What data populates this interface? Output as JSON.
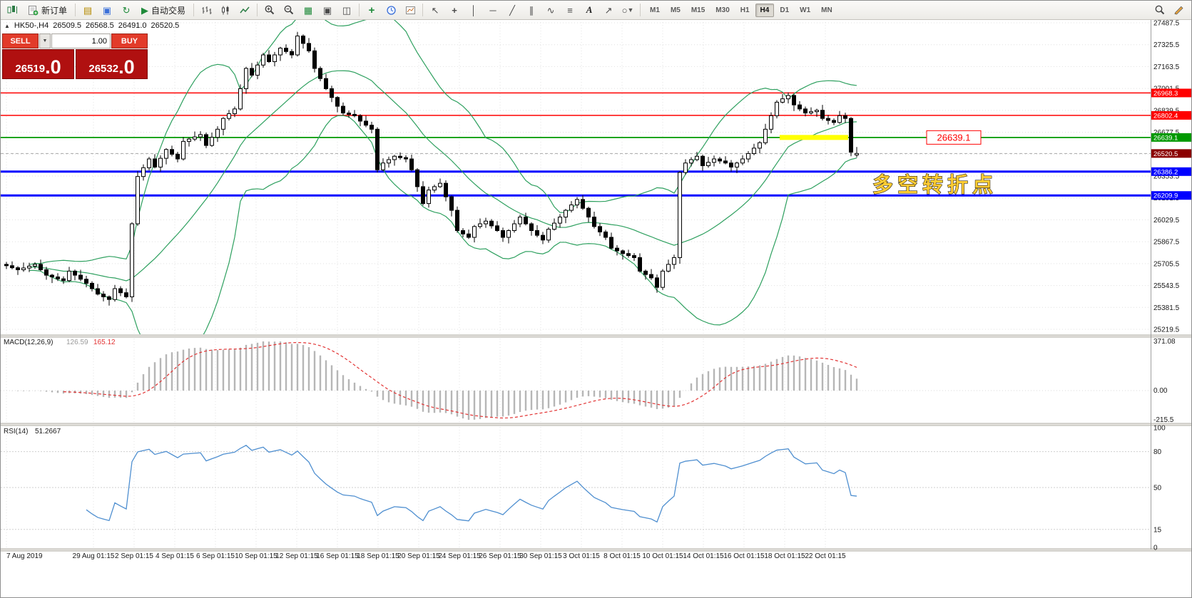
{
  "toolbar": {
    "new_order_label": "新订单",
    "autotrading_label": "自动交易",
    "timeframes": [
      "M1",
      "M5",
      "M15",
      "M30",
      "H1",
      "H4",
      "D1",
      "W1",
      "MN"
    ],
    "active_timeframe": "H4",
    "glyphs": {
      "collapse": "▲",
      "newchart": "▤",
      "profiles": "▣",
      "refresh": "↻",
      "play": "▶",
      "tile": "▦",
      "win1": "▣",
      "win2": "◫",
      "plus": "+",
      "cursor": "↖",
      "cross": "+",
      "vline": "│",
      "hline": "─",
      "trend": "╱",
      "channel": "∥",
      "wave": "∿",
      "fibo": "≡",
      "text": "A",
      "arrow": "↗",
      "shape": "○",
      "dd": "▼"
    }
  },
  "chart_header": {
    "symbol": "HK50-,H4",
    "open": "26509.5",
    "high": "26568.5",
    "low": "26491.0",
    "close": "26520.5"
  },
  "trade_panel": {
    "sell_label": "SELL",
    "buy_label": "BUY",
    "volume": "1.00",
    "sell_price": "26519",
    "sell_price_frac": ".0",
    "buy_price": "26532",
    "buy_price_frac": ".0"
  },
  "chart_data": {
    "type": "candlestick",
    "symbol": "HK50-",
    "period": "H4",
    "title": "HK50-,H4 26509.5 26568.5 26491.0 26520.5",
    "price_axis_ticks": [
      27487.5,
      27325.5,
      27163.5,
      27001.5,
      26839.5,
      26677.5,
      26515.5,
      26353.5,
      26191.5,
      26029.5,
      25867.5,
      25705.5,
      25543.5,
      25381.5,
      25219.5
    ],
    "hlines": [
      {
        "price": 26968.3,
        "color": "#ff0000",
        "width": 1.5
      },
      {
        "price": 26802.4,
        "color": "#ff0000",
        "width": 1.5
      },
      {
        "price": 26639.1,
        "color": "#009900",
        "width": 1.8
      },
      {
        "price": 26386.2,
        "color": "#0000ff",
        "width": 3
      },
      {
        "price": 26209.9,
        "color": "#0000ff",
        "width": 3
      }
    ],
    "bid_line": {
      "price": 26520.5,
      "label": "26520.5",
      "color": "#8b0000"
    },
    "highlight_segment": {
      "price": 26639.1,
      "bar_start": 136,
      "bar_end": 147,
      "color": "#ffff00"
    },
    "pivot_label": {
      "text": "26639.1",
      "color": "#ff0000"
    },
    "note": {
      "text": "多空转折点",
      "color": "#ffcc33"
    },
    "indicators": {
      "bollinger": {
        "period": 20,
        "deviation": 2,
        "color": "#2ea05f"
      },
      "macd": {
        "fast": 12,
        "slow": 26,
        "signal": 9,
        "name": "MACD(12,26,9)",
        "value1": "126.59",
        "value2": "165.12",
        "axis_labels": [
          "371.08",
          "0.00",
          "-215.5"
        ],
        "histogram_color": "#b6b6b6",
        "signal_color": "#e23333"
      },
      "rsi": {
        "period": 14,
        "name": "RSI(14)",
        "value": "51.2667",
        "axis_labels": [
          "100",
          "80",
          "50",
          "15",
          "0"
        ],
        "levels": [
          80,
          50,
          15
        ],
        "color": "#4f8fd0"
      }
    },
    "time_axis": {
      "labels": [
        "7 Aug 2019",
        "29 Aug 01:15",
        "2 Sep 01:15",
        "4 Sep 01:15",
        "6 Sep 01:15",
        "10 Sep 01:15",
        "12 Sep 01:15",
        "16 Sep 01:15",
        "18 Sep 01:15",
        "20 Sep 01:15",
        "24 Sep 01:15",
        "26 Sep 01:15",
        "30 Sep 01:15",
        "3 Oct 01:15",
        "8 Oct 01:15",
        "10 Oct 01:15",
        "14 Oct 01:15",
        "16 Oct 01:15",
        "18 Oct 01:15",
        "22 Oct 01:15"
      ],
      "x": [
        8,
        130,
        187,
        244,
        301,
        358,
        415,
        472,
        529,
        586,
        643,
        700,
        757,
        814,
        871,
        928,
        985,
        1042,
        1099,
        1156
      ]
    },
    "candles": [
      [
        25700,
        25718,
        25665,
        25690
      ],
      [
        25690,
        25722,
        25663,
        25675
      ],
      [
        25675,
        25687,
        25622,
        25660
      ],
      [
        25660,
        25713,
        25645,
        25673
      ],
      [
        25673,
        25712,
        25643,
        25687
      ],
      [
        25687,
        25715,
        25667,
        25700
      ],
      [
        25700,
        25735,
        25650,
        25660
      ],
      [
        25660,
        25682,
        25586,
        25620
      ],
      [
        25620,
        25630,
        25562,
        25607
      ],
      [
        25607,
        25635,
        25577,
        25593
      ],
      [
        25593,
        25611,
        25555,
        25580
      ],
      [
        25580,
        25682,
        25568,
        25650
      ],
      [
        25650,
        25662,
        25582,
        25620
      ],
      [
        25620,
        25660,
        25575,
        25590
      ],
      [
        25590,
        25615,
        25530,
        25560
      ],
      [
        25560,
        25575,
        25500,
        25520
      ],
      [
        25520,
        25555,
        25470,
        25480
      ],
      [
        25480,
        25502,
        25426,
        25460
      ],
      [
        25460,
        25470,
        25395,
        25440
      ],
      [
        25440,
        25548,
        25424,
        25520
      ],
      [
        25520,
        25538,
        25465,
        25490
      ],
      [
        25490,
        25522,
        25448,
        25460
      ],
      [
        25460,
        26012,
        25422,
        26000
      ],
      [
        26000,
        26390,
        25985,
        26350
      ],
      [
        26350,
        26440,
        26320,
        26415
      ],
      [
        26415,
        26495,
        26395,
        26480
      ],
      [
        26480,
        26515,
        26410,
        26420
      ],
      [
        26420,
        26507,
        26386,
        26485
      ],
      [
        26485,
        26560,
        26440,
        26550
      ],
      [
        26550,
        26578,
        26499,
        26515
      ],
      [
        26515,
        26533,
        26455,
        26480
      ],
      [
        26480,
        26642,
        26468,
        26610
      ],
      [
        26610,
        26639,
        26572,
        26627
      ],
      [
        26627,
        26683,
        26612,
        26643
      ],
      [
        26643,
        26685,
        26613,
        26660
      ],
      [
        26660,
        26675,
        26560,
        26580
      ],
      [
        26580,
        26675,
        26570,
        26640
      ],
      [
        26640,
        26722,
        26606,
        26700
      ],
      [
        26700,
        26790,
        26655,
        26780
      ],
      [
        26780,
        26843,
        26764,
        26815
      ],
      [
        26815,
        26868,
        26790,
        26850
      ],
      [
        26850,
        27032,
        26838,
        27000
      ],
      [
        27000,
        27162,
        26962,
        27150
      ],
      [
        27150,
        27190,
        27085,
        27100
      ],
      [
        27100,
        27200,
        27070,
        27175
      ],
      [
        27175,
        27265,
        27155,
        27250
      ],
      [
        27250,
        27285,
        27190,
        27200
      ],
      [
        27200,
        27272,
        27166,
        27250
      ],
      [
        27250,
        27310,
        27205,
        27300
      ],
      [
        27300,
        27328,
        27259,
        27275
      ],
      [
        27275,
        27293,
        27225,
        27250
      ],
      [
        27250,
        27420,
        27238,
        27390
      ],
      [
        27390,
        27402,
        27297,
        27335
      ],
      [
        27335,
        27375,
        27265,
        27280
      ],
      [
        27280,
        27305,
        27120,
        27150
      ],
      [
        27150,
        27165,
        27055,
        27075
      ],
      [
        27075,
        27110,
        26990,
        27000
      ],
      [
        27000,
        27022,
        26901,
        26935
      ],
      [
        26935,
        26945,
        26825,
        26870
      ],
      [
        26870,
        26898,
        26804,
        26820
      ],
      [
        26820,
        26838,
        26785,
        26810
      ],
      [
        26810,
        26842,
        26788,
        26800
      ],
      [
        26800,
        26812,
        26722,
        26760
      ],
      [
        26760,
        26800,
        26715,
        26730
      ],
      [
        26730,
        26755,
        26670,
        26700
      ],
      [
        26700,
        26715,
        26380,
        26400
      ],
      [
        26400,
        26485,
        26390,
        26450
      ],
      [
        26450,
        26497,
        26416,
        26475
      ],
      [
        26475,
        26510,
        26430,
        26500
      ],
      [
        26500,
        26528,
        26474,
        26490
      ],
      [
        26490,
        26508,
        26455,
        26480
      ],
      [
        26480,
        26512,
        26388,
        26400
      ],
      [
        26400,
        26412,
        26237,
        26275
      ],
      [
        26275,
        26315,
        26135,
        26150
      ],
      [
        26150,
        26275,
        26120,
        26250
      ],
      [
        26250,
        26290,
        26230,
        26275
      ],
      [
        26275,
        26335,
        26265,
        26300
      ],
      [
        26300,
        26322,
        26166,
        26200
      ],
      [
        26200,
        26210,
        26055,
        26100
      ],
      [
        26100,
        26128,
        25934,
        25950
      ],
      [
        25950,
        25968,
        25900,
        25925
      ],
      [
        25925,
        25957,
        25888,
        25900
      ],
      [
        25900,
        25992,
        25862,
        25980
      ],
      [
        25980,
        26040,
        25965,
        26000
      ],
      [
        26000,
        26045,
        25970,
        26020
      ],
      [
        26020,
        26035,
        25965,
        25985
      ],
      [
        25985,
        26020,
        25940,
        25950
      ],
      [
        25950,
        25972,
        25866,
        25900
      ],
      [
        25900,
        25960,
        25855,
        25950
      ],
      [
        25950,
        26028,
        25934,
        26000
      ],
      [
        26000,
        26068,
        25975,
        26050
      ],
      [
        26050,
        26082,
        25988,
        26000
      ],
      [
        26000,
        26012,
        25912,
        25950
      ],
      [
        25950,
        25990,
        25900,
        25915
      ],
      [
        25915,
        25940,
        25850,
        25880
      ],
      [
        25880,
        25975,
        25860,
        25960
      ],
      [
        25960,
        26040,
        25950,
        26005
      ],
      [
        26005,
        26072,
        25971,
        26050
      ],
      [
        26050,
        26110,
        26005,
        26100
      ],
      [
        26100,
        26168,
        26084,
        26140
      ],
      [
        26140,
        26198,
        26115,
        26180
      ],
      [
        26180,
        26212,
        26103,
        26115
      ],
      [
        26115,
        26127,
        26012,
        26050
      ],
      [
        26050,
        26090,
        25965,
        25980
      ],
      [
        25980,
        26005,
        25910,
        25940
      ],
      [
        25940,
        25955,
        25880,
        25900
      ],
      [
        25900,
        25935,
        25810,
        25820
      ],
      [
        25820,
        25842,
        25766,
        25800
      ],
      [
        25800,
        25810,
        25735,
        25780
      ],
      [
        25780,
        25808,
        25749,
        25765
      ],
      [
        25765,
        25783,
        25725,
        25750
      ],
      [
        25750,
        25782,
        25638,
        25650
      ],
      [
        25650,
        25662,
        25587,
        25625
      ],
      [
        25625,
        25665,
        25585,
        25600
      ],
      [
        25600,
        25625,
        25490,
        25530
      ],
      [
        25530,
        25665,
        25510,
        25650
      ],
      [
        25650,
        25735,
        25640,
        25700
      ],
      [
        25700,
        25772,
        25666,
        25750
      ],
      [
        25750,
        26390,
        25705,
        26380
      ],
      [
        26380,
        26478,
        26364,
        26450
      ],
      [
        26450,
        26493,
        26425,
        26475
      ],
      [
        26475,
        26532,
        26463,
        26500
      ],
      [
        26500,
        26512,
        26392,
        26430
      ],
      [
        26430,
        26495,
        26415,
        26455
      ],
      [
        26455,
        26505,
        26425,
        26480
      ],
      [
        26480,
        26495,
        26445,
        26465
      ],
      [
        26465,
        26500,
        26440,
        26450
      ],
      [
        26450,
        26472,
        26386,
        26420
      ],
      [
        26420,
        26460,
        26375,
        26450
      ],
      [
        26450,
        26508,
        26434,
        26480
      ],
      [
        26480,
        26538,
        26455,
        26520
      ],
      [
        26520,
        26592,
        26508,
        26560
      ],
      [
        26560,
        26612,
        26522,
        26600
      ],
      [
        26600,
        26740,
        26585,
        26700
      ],
      [
        26700,
        26825,
        26670,
        26800
      ],
      [
        26800,
        26915,
        26780,
        26900
      ],
      [
        26900,
        26960,
        26890,
        26925
      ],
      [
        26925,
        26972,
        26891,
        26950
      ],
      [
        26950,
        26960,
        26835,
        26880
      ],
      [
        26880,
        26908,
        26834,
        26850
      ],
      [
        26850,
        26868,
        26795,
        26820
      ],
      [
        26820,
        26862,
        26808,
        26830
      ],
      [
        26830,
        26852,
        26792,
        26840
      ],
      [
        26840,
        26880,
        26765,
        26780
      ],
      [
        26780,
        26805,
        26735,
        26765
      ],
      [
        26765,
        26780,
        26730,
        26750
      ],
      [
        26750,
        26835,
        26740,
        26800
      ],
      [
        26800,
        26822,
        26746,
        26780
      ],
      [
        26780,
        26790,
        26500,
        26530
      ],
      [
        26509.5,
        26568.5,
        26491.0,
        26520.5
      ]
    ]
  }
}
